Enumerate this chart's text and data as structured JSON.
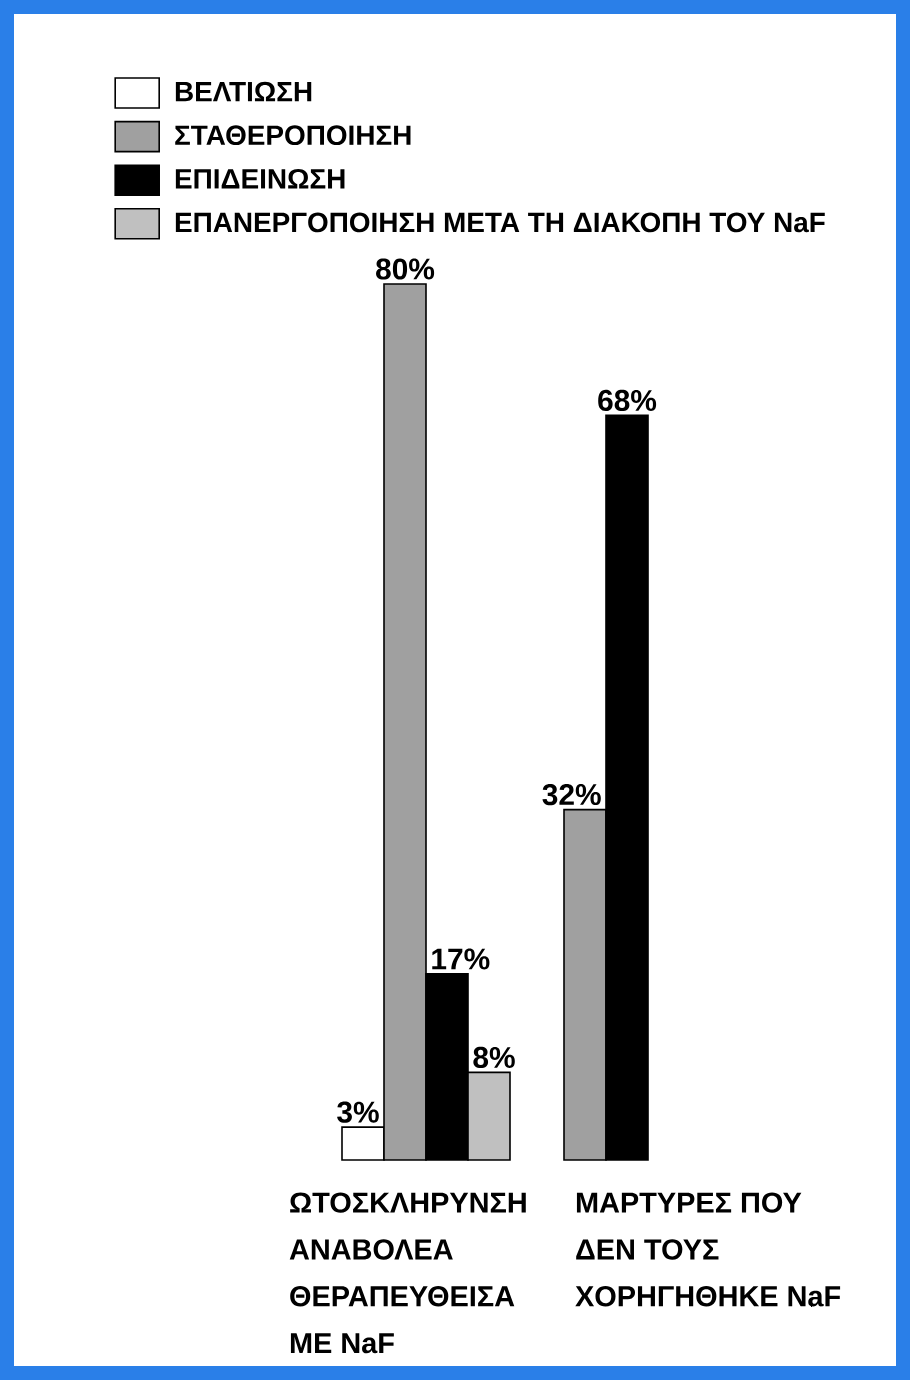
{
  "chart_data": {
    "type": "bar",
    "categories": [
      "ΩΤΟΣΚΛΗΡΥΝΣΗ ΑΝΑΒΟΛΕΑ ΘΕΡΑΠΕΥΘΕΙΣΑ ΜΕ NaF",
      "ΜΑΡΤΥΡΕΣ ΠΟΥ ΔΕΝ ΤΟΥΣ ΧΟΡΗΓΗΘΗΚΕ NaF"
    ],
    "series": [
      {
        "name": "ΒΕΛΤΙΩΣΗ",
        "color": "#ffffff",
        "values": [
          3,
          null
        ],
        "value_labels": [
          "3%",
          null
        ]
      },
      {
        "name": "ΣΤΑΘΕΡΟΠΟΙΗΣΗ",
        "color": "#a0a0a0",
        "values": [
          80,
          32
        ],
        "value_labels": [
          "80%",
          "32%"
        ]
      },
      {
        "name": "ΕΠΙΔΕΙΝΩΣΗ",
        "color": "#000000",
        "values": [
          17,
          68
        ],
        "value_labels": [
          "17%",
          "68%"
        ]
      },
      {
        "name": "ΕΠΑΝΕΡΓΟΠΟΙΗΣΗ ΜΕΤΑ ΤΗ ΔΙΑΚΟΠΗ ΤΟΥ NaF",
        "color": "#c0c0c0",
        "values": [
          8,
          null
        ],
        "value_labels": [
          "8%",
          null
        ]
      }
    ],
    "legend": "top left",
    "tick_labels": "x"
  }
}
